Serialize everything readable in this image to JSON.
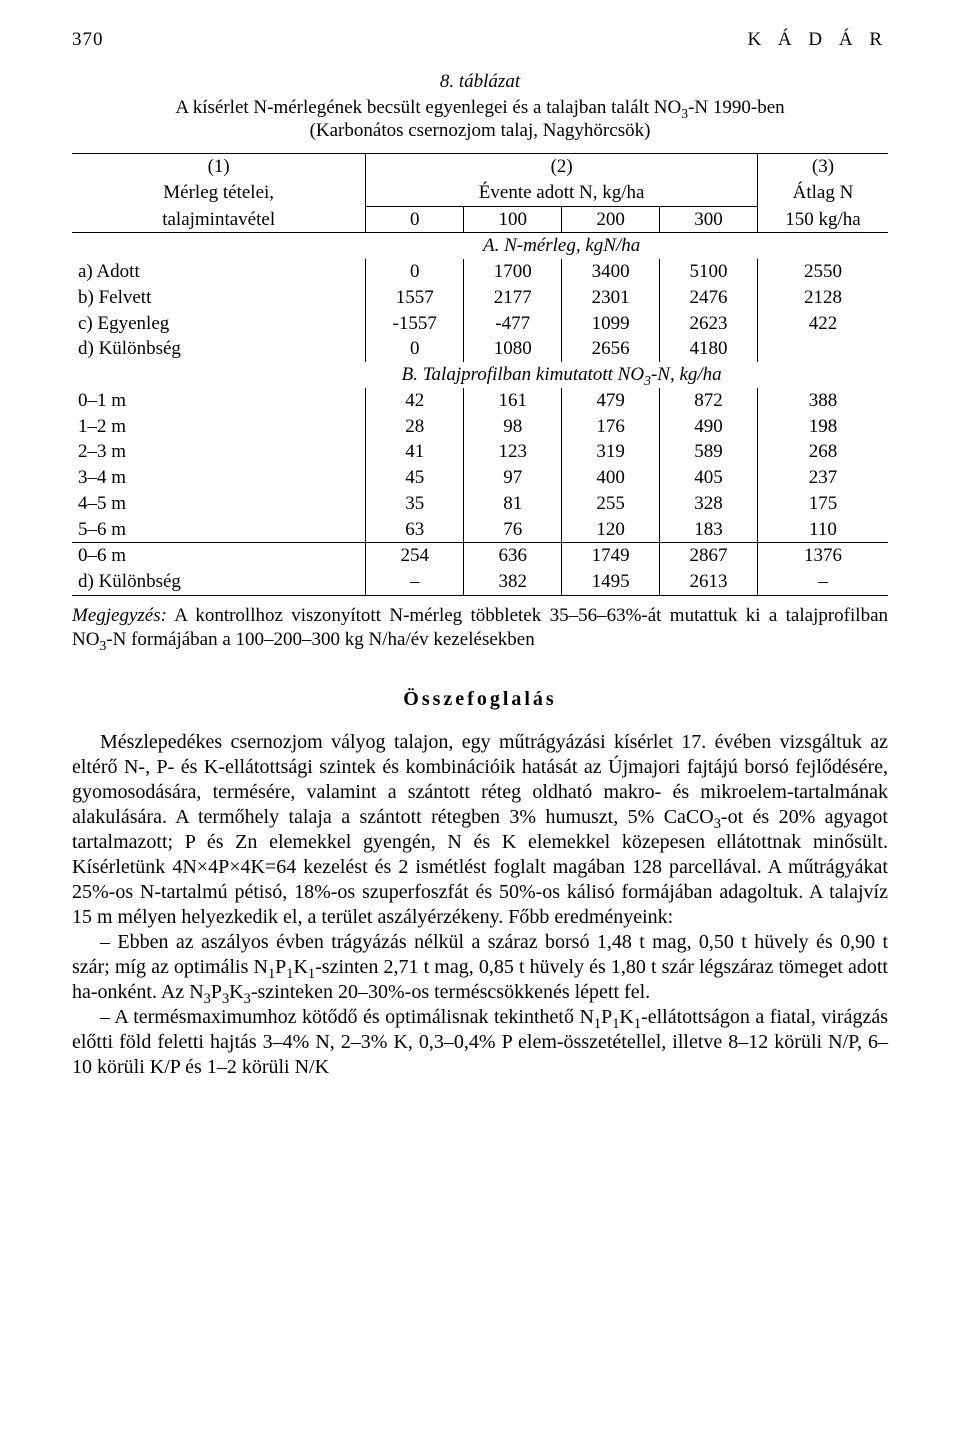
{
  "header": {
    "page_number": "370",
    "author": "K Á D Á R"
  },
  "table": {
    "type": "table",
    "background_color": "#ffffff",
    "grid_color": "#000000",
    "fontsize": 19,
    "caption_line1_num": "8. táblázat",
    "caption_line2_html": "A kísérlet N-mérlegének becsült egyenlegei és a talajban talált NO<sub>3</sub>-N 1990-ben",
    "caption_line3": "(Karbonátos csernozjom talaj, Nagyhörcsök)",
    "head": {
      "c1_sup": "(1)",
      "c1_a": "Mérleg tételei,",
      "c1_b": "talajmintavétel",
      "c2_sup": "(2)",
      "c2_a": "Évente adott N, kg/ha",
      "c3_sup": "(3)",
      "c3_a": "Átlag N",
      "c3_b": "150 kg/ha",
      "sub_cols": [
        "0",
        "100",
        "200",
        "300"
      ]
    },
    "sectionA_title": "A. N-mérleg, kgN/ha",
    "sectionA_rows": [
      {
        "label": "a) Adott",
        "v": [
          "0",
          "1700",
          "3400",
          "5100"
        ],
        "avg": "2550"
      },
      {
        "label": "b) Felvett",
        "v": [
          "1557",
          "2177",
          "2301",
          "2476"
        ],
        "avg": "2128"
      },
      {
        "label": "c) Egyenleg",
        "v": [
          "-1557",
          "-477",
          "1099",
          "2623"
        ],
        "avg": "422"
      },
      {
        "label": "d) Különbség",
        "v": [
          "0",
          "1080",
          "2656",
          "4180"
        ],
        "avg": ""
      }
    ],
    "sectionB_title_html": "B. Talajprofilban kimutatott NO<sub>3</sub>-N, kg/ha",
    "sectionB_rows": [
      {
        "label": "0–1 m",
        "v": [
          "42",
          "161",
          "479",
          "872"
        ],
        "avg": "388"
      },
      {
        "label": "1–2 m",
        "v": [
          "28",
          "98",
          "176",
          "490"
        ],
        "avg": "198"
      },
      {
        "label": "2–3 m",
        "v": [
          "41",
          "123",
          "319",
          "589"
        ],
        "avg": "268"
      },
      {
        "label": "3–4 m",
        "v": [
          "45",
          "97",
          "400",
          "405"
        ],
        "avg": "237"
      },
      {
        "label": "4–5 m",
        "v": [
          "35",
          "81",
          "255",
          "328"
        ],
        "avg": "175"
      },
      {
        "label": "5–6 m",
        "v": [
          "63",
          "76",
          "120",
          "183"
        ],
        "avg": "110"
      }
    ],
    "sectionC_rows": [
      {
        "label": "0–6 m",
        "v": [
          "254",
          "636",
          "1749",
          "2867"
        ],
        "avg": "1376"
      },
      {
        "label": "d) Különbség",
        "v": [
          "–",
          "382",
          "1495",
          "2613"
        ],
        "avg": "–"
      }
    ]
  },
  "note": {
    "label": "Megjegyzés:",
    "text_html": " A kontrollhoz viszonyított N-mérleg többletek 35–56–63%-át mutattuk ki a talajprofilban NO<sub>3</sub>-N formájában a 100–200–300 kg N/ha/év kezelésekben"
  },
  "summary": {
    "title": "Összefoglalás",
    "p1_html": "Mészlepedékes csernozjom vályog talajon, egy műtrágyázási kísérlet 17. évében vizsgáltuk az eltérő N-, P- és K-ellátottsági szintek és kombinációik hatását az Újmajori fajtájú borsó fejlődésére, gyomosodására, termésére, valamint a szántott réteg oldható makro- és mikroelem-tartalmának alakulására. A termőhely talaja a szántott rétegben 3% humuszt, 5% CaCO<sub>3</sub>-ot és 20% agyagot tartalmazott; P és Zn elemekkel gyengén, N és K elemekkel közepesen ellátottnak minősült. Kísérletünk 4N×4P×4K=64 kezelést és 2 ismétlést foglalt magában 128 parcellával. A műtrágyákat 25%-os N-tartalmú pétisó, 18%-os szuperfoszfát és 50%-os kálisó formájában adagoltuk. A talajvíz 15 m mélyen helyezkedik el, a terület aszályérzékeny. Főbb eredményeink:",
    "p2_html": "– Ebben az aszályos évben trágyázás nélkül a száraz borsó 1,48 t mag, 0,50 t hüvely és 0,90 t szár; míg az optimális N<sub>1</sub>P<sub>1</sub>K<sub>1</sub>-szinten 2,71 t mag, 0,85 t hüvely és 1,80 t szár légszáraz tömeget adott ha-onként. Az N<sub>3</sub>P<sub>3</sub>K<sub>3</sub>-szinteken 20–30%-os terméscsökkenés lépett fel.",
    "p3_html": "– A termésmaximumhoz kötődő és optimálisnak tekinthető N<sub>1</sub>P<sub>1</sub>K<sub>1</sub>-ellátottságon a fiatal, virágzás előtti föld feletti hajtás 3–4% N, 2–3% K, 0,3–0,4% P elem-összetétellel, illetve 8–12 körüli N/P, 6–10 körüli K/P és 1–2 körüli N/K"
  }
}
